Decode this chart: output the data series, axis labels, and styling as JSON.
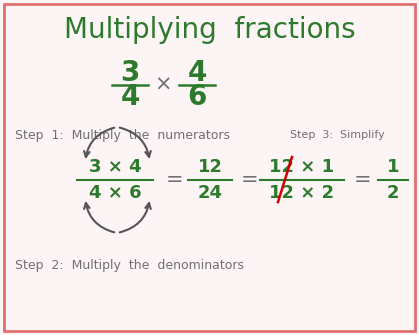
{
  "title": "Multiplying  fractions",
  "title_color": "#2d7a2d",
  "title_fontsize": 20,
  "bg_color": "#fdf5f5",
  "border_color": "#e07070",
  "green_color": "#2d7a2d",
  "gray_color": "#707070",
  "red_color": "#cc0000",
  "step1_text": "Step  1:  Multiply  the  numerators",
  "step2_text": "Step  2:  Multiply  the  denominators",
  "step3_text": "Step  3:  Simplify"
}
